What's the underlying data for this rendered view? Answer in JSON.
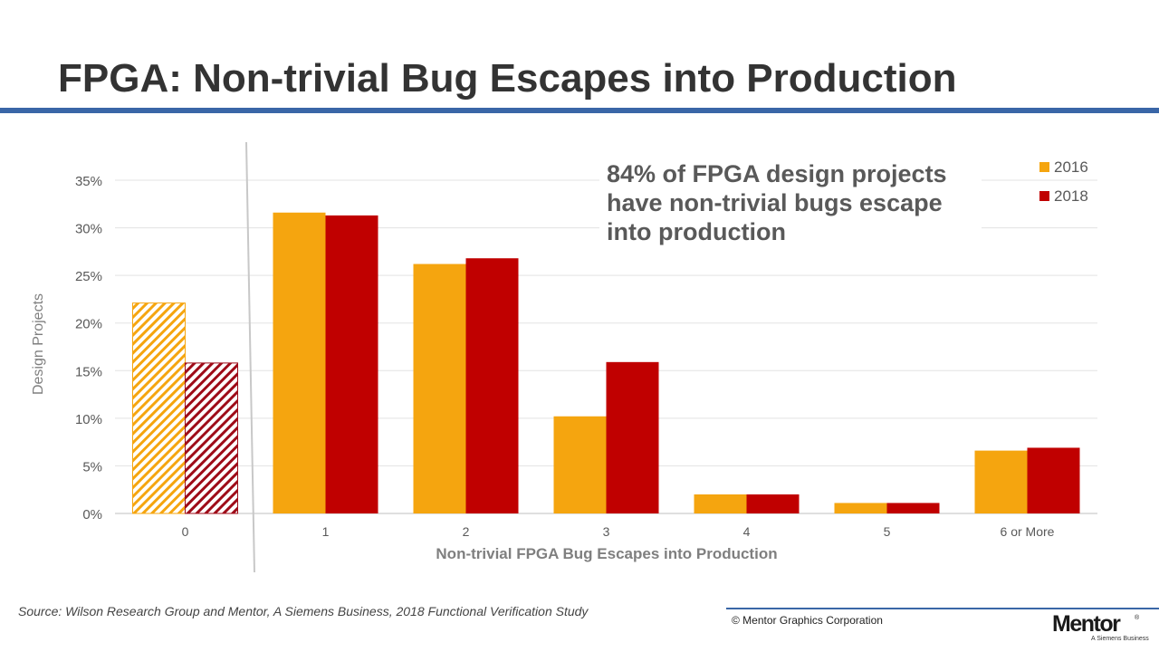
{
  "slide": {
    "title": "FPGA: Non-trivial Bug Escapes into Production",
    "callout": "84% of FPGA design projects\nhave non-trivial bugs escape\ninto production",
    "source": "Source:  Wilson Research Group and Mentor, A Siemens Business, 2018 Functional Verification Study",
    "copyright": "© Mentor Graphics Corporation",
    "logo_text": "Mentor",
    "logo_subtext": "A Siemens Business",
    "logo_reg": "®"
  },
  "chart_data": {
    "type": "bar",
    "title": "",
    "xlabel": "Non-trivial FPGA Bug Escapes into Production",
    "ylabel": "Design Projects",
    "categories": [
      "0",
      "1",
      "2",
      "3",
      "4",
      "5",
      "6 or More"
    ],
    "series": [
      {
        "name": "2016",
        "color": "#f5a50f",
        "values": [
          22.1,
          31.6,
          26.2,
          10.2,
          2.0,
          1.1,
          6.6
        ]
      },
      {
        "name": "2018",
        "color": "#c00000",
        "values": [
          15.8,
          31.3,
          26.8,
          15.9,
          2.0,
          1.1,
          6.9
        ]
      }
    ],
    "hatched_categories": [
      "0"
    ],
    "ylim": [
      0,
      35
    ],
    "yticks": [
      0,
      5,
      10,
      15,
      20,
      25,
      30,
      35
    ],
    "ytick_format": "percent",
    "grid": true,
    "legend_position": "top-right"
  }
}
